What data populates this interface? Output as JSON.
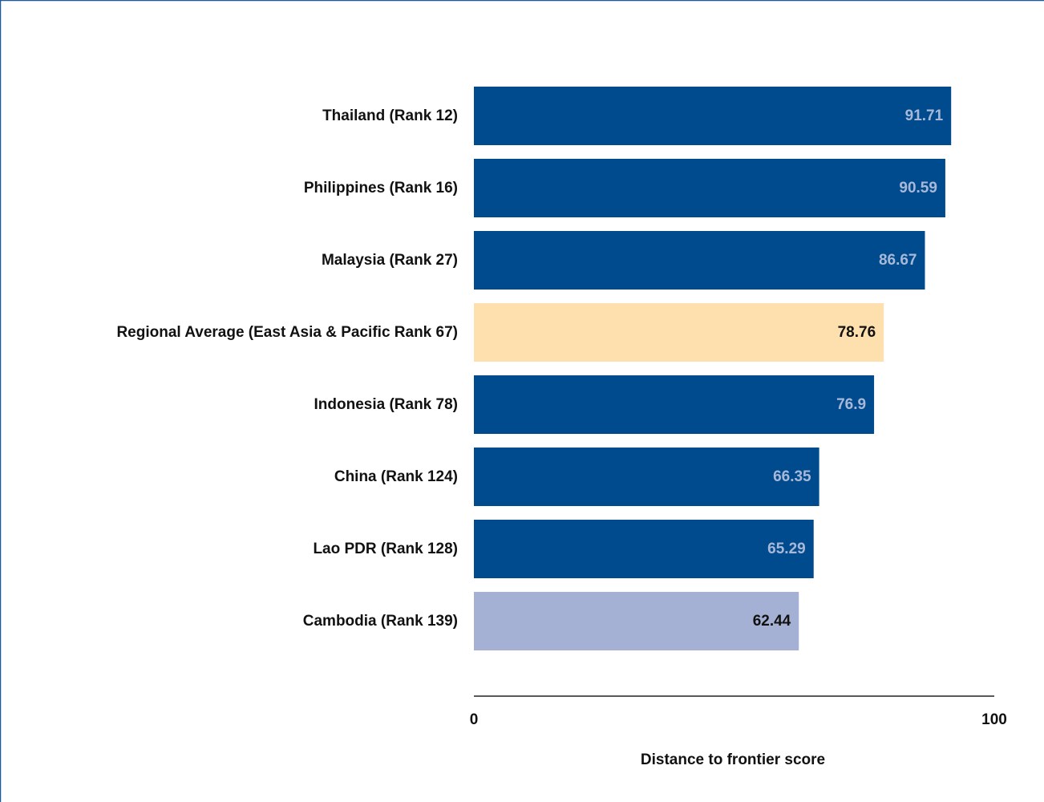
{
  "chart_data": {
    "type": "bar",
    "orientation": "horizontal",
    "categories": [
      "Thailand (Rank 12)",
      "Philippines (Rank 16)",
      "Malaysia (Rank 27)",
      "Regional Average (East Asia & Pacific Rank 67)",
      "Indonesia (Rank 78)",
      "China (Rank 124)",
      "Lao PDR (Rank 128)",
      "Cambodia (Rank 139)"
    ],
    "values": [
      91.71,
      90.59,
      86.67,
      78.76,
      76.9,
      66.35,
      65.29,
      62.44
    ],
    "colors": [
      "#004b8d",
      "#004b8d",
      "#004b8d",
      "#fde0ad",
      "#004b8d",
      "#004b8d",
      "#004b8d",
      "#a5b1d4"
    ],
    "xlabel": "Distance to frontier score",
    "xlim": [
      0,
      100
    ],
    "xticks": [
      0,
      100
    ],
    "grid": false
  }
}
